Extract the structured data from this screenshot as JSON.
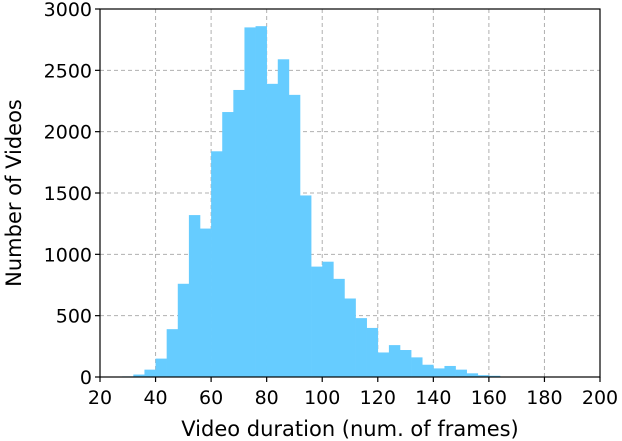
{
  "chart_data": {
    "type": "bar",
    "xlabel": "Video duration (num. of frames)",
    "ylabel": "Number of Videos",
    "xlim": [
      20,
      200
    ],
    "ylim": [
      0,
      3000
    ],
    "xticks": [
      20,
      40,
      60,
      80,
      100,
      120,
      140,
      160,
      180,
      200
    ],
    "yticks": [
      0,
      500,
      1000,
      1500,
      2000,
      2500,
      3000
    ],
    "grid": true,
    "bar_color": "#66ccff",
    "bin_width": 4,
    "bin_starts": [
      28,
      32,
      36,
      40,
      44,
      48,
      52,
      56,
      60,
      64,
      68,
      72,
      76,
      80,
      84,
      88,
      92,
      96,
      100,
      104,
      108,
      112,
      116,
      120,
      124,
      128,
      132,
      136,
      140,
      144,
      148,
      152,
      156,
      160,
      164,
      168
    ],
    "values": [
      5,
      20,
      60,
      150,
      390,
      760,
      1320,
      1210,
      1840,
      2160,
      2340,
      2850,
      2860,
      2390,
      2590,
      2300,
      1480,
      900,
      940,
      800,
      640,
      480,
      400,
      200,
      260,
      220,
      160,
      100,
      70,
      90,
      60,
      30,
      15,
      10,
      3,
      2
    ]
  }
}
